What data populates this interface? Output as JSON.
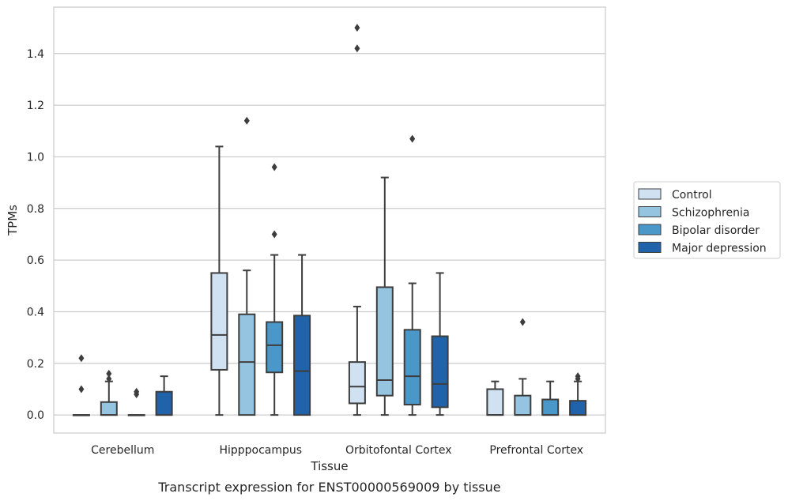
{
  "caption": "Transcript expression for ENST00000569009 by tissue",
  "chart_data": {
    "type": "box",
    "xlabel": "Tissue",
    "ylabel": "TPMs",
    "ylim": [
      -0.07,
      1.58
    ],
    "yticks": [
      0.0,
      0.2,
      0.4,
      0.6,
      0.8,
      1.0,
      1.2,
      1.4
    ],
    "ytick_labels": [
      "0.0",
      "0.2",
      "0.4",
      "0.6",
      "0.8",
      "1.0",
      "1.2",
      "1.4"
    ],
    "grid": "horizontal",
    "legend_position": "right",
    "categories": [
      "Cerebellum",
      "Hipppocampus",
      "Orbitofontal Cortex",
      "Prefrontal Cortex"
    ],
    "series": [
      {
        "name": "Control",
        "color": "#d0e1f2",
        "boxes": [
          {
            "min": 0.0,
            "q1": 0.0,
            "median": 0.0,
            "q3": 0.0,
            "max": 0.0,
            "outliers": [
              0.22,
              0.1
            ]
          },
          {
            "min": 0.0,
            "q1": 0.175,
            "median": 0.31,
            "q3": 0.55,
            "max": 1.04,
            "outliers": []
          },
          {
            "min": 0.0,
            "q1": 0.045,
            "median": 0.11,
            "q3": 0.205,
            "max": 0.42,
            "outliers": [
              1.5,
              1.42
            ]
          },
          {
            "min": 0.0,
            "q1": 0.0,
            "median": 0.0,
            "q3": 0.1,
            "max": 0.13,
            "outliers": []
          }
        ]
      },
      {
        "name": "Schizophrenia",
        "color": "#94c4df",
        "boxes": [
          {
            "min": 0.0,
            "q1": 0.0,
            "median": 0.0,
            "q3": 0.05,
            "max": 0.13,
            "outliers": [
              0.16,
              0.14
            ]
          },
          {
            "min": 0.0,
            "q1": 0.0,
            "median": 0.205,
            "q3": 0.39,
            "max": 0.56,
            "outliers": [
              1.14
            ]
          },
          {
            "min": 0.0,
            "q1": 0.075,
            "median": 0.135,
            "q3": 0.495,
            "max": 0.92,
            "outliers": []
          },
          {
            "min": 0.0,
            "q1": 0.0,
            "median": 0.0,
            "q3": 0.075,
            "max": 0.14,
            "outliers": [
              0.36
            ]
          }
        ]
      },
      {
        "name": "Bipolar disorder",
        "color": "#4a98c9",
        "boxes": [
          {
            "min": 0.0,
            "q1": 0.0,
            "median": 0.0,
            "q3": 0.0,
            "max": 0.0,
            "outliers": [
              0.09,
              0.08
            ]
          },
          {
            "min": 0.0,
            "q1": 0.165,
            "median": 0.27,
            "q3": 0.36,
            "max": 0.62,
            "outliers": [
              0.96,
              0.7
            ]
          },
          {
            "min": 0.0,
            "q1": 0.04,
            "median": 0.15,
            "q3": 0.33,
            "max": 0.51,
            "outliers": [
              1.07
            ]
          },
          {
            "min": 0.0,
            "q1": 0.0,
            "median": 0.0,
            "q3": 0.06,
            "max": 0.13,
            "outliers": []
          }
        ]
      },
      {
        "name": "Major depression",
        "color": "#2163aa",
        "boxes": [
          {
            "min": 0.0,
            "q1": 0.0,
            "median": 0.0,
            "q3": 0.09,
            "max": 0.15,
            "outliers": []
          },
          {
            "min": 0.0,
            "q1": 0.0,
            "median": 0.17,
            "q3": 0.385,
            "max": 0.62,
            "outliers": []
          },
          {
            "min": 0.0,
            "q1": 0.03,
            "median": 0.12,
            "q3": 0.305,
            "max": 0.55,
            "outliers": []
          },
          {
            "min": 0.0,
            "q1": 0.0,
            "median": 0.0,
            "q3": 0.055,
            "max": 0.13,
            "outliers": [
              0.15,
              0.14
            ]
          }
        ]
      }
    ]
  }
}
